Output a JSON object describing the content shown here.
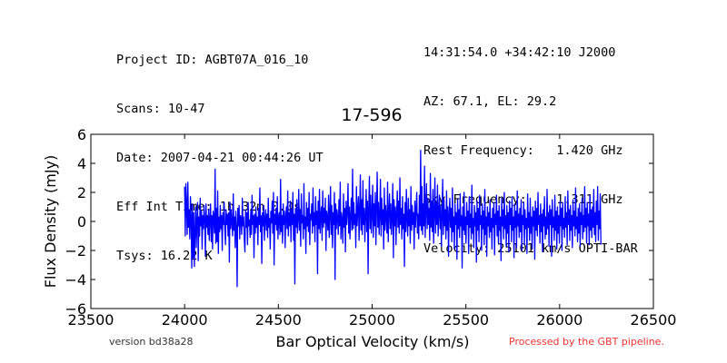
{
  "header_left": {
    "project": "Project ID: AGBT07A_016_10",
    "scans": "Scans: 10-47",
    "date": "Date: 2007-04-21 00:44:26 UT",
    "int_time": "Eff Int Time: 1h 32m 0.0s",
    "tsys": "Tsys: 16.22 K"
  },
  "header_right": {
    "coords": "14:31:54.0 +34:42:10 J2000",
    "azel": "AZ: 67.1, EL: 29.2",
    "rest_freq": "Rest Frequency:   1.420 GHz",
    "sky_freq": "Sky Frequency:    1.311 GHz",
    "velocity": "Velocity: 25101 km/s OPTI-BAR"
  },
  "footer": {
    "version": "version bd38a28",
    "pipeline": "Processed by the GBT pipeline."
  },
  "chart_data": {
    "type": "line",
    "title": "17-596",
    "xlabel": "Bar Optical Velocity (km/s)",
    "ylabel": "Flux Density (mJy)",
    "xlim": [
      23500,
      26500
    ],
    "ylim": [
      -6,
      6
    ],
    "xticks": [
      23500,
      24000,
      24500,
      25000,
      25500,
      26000,
      26500
    ],
    "yticks": [
      -6,
      -4,
      -2,
      0,
      2,
      4,
      6
    ],
    "grid": false,
    "line_color": "#0000ff",
    "series": [
      {
        "x_start": 24000,
        "x_end": 26220,
        "values": [
          2.4,
          -1.0,
          2.6,
          1.2,
          -0.9,
          2.7,
          -0.4,
          0.8,
          -1.2,
          1.7,
          0.3,
          -3.2,
          1.2,
          -2.5,
          0.6,
          -3.1,
          -0.6,
          1.0,
          -1.8,
          0.1,
          1.3,
          -2.7,
          0.3,
          -1.0,
          1.6,
          -0.3,
          0.7,
          -1.9,
          0.4,
          -0.5,
          1.1,
          0.2,
          -2.4,
          1.2,
          -0.4,
          0.4,
          -0.9,
          0.8,
          -1.3,
          0.2,
          1.2,
          -1.4,
          0.4,
          -1.9,
          0.7,
          0.2,
          -0.8,
          3.6,
          -1.5,
          0.9,
          -1.4,
          2.1,
          -2.2,
          0.3,
          -0.7,
          1.1,
          -0.5,
          0.4,
          -2.0,
          0.6,
          -0.2,
          1.3,
          -0.5,
          -1.6,
          0.8,
          -0.2,
          0.5,
          -1.0,
          0.6,
          -2.8,
          1.3,
          -0.5,
          0.8,
          -0.1,
          -1.0,
          1.9,
          -0.6,
          0.3,
          -1.8,
          0.7,
          -0.4,
          -4.5,
          0.9,
          -0.3,
          1.1,
          -1.2,
          0.4,
          0.2,
          -0.9,
          1.6,
          -0.3,
          0.3,
          -1.2,
          -2.1,
          0.8,
          -0.4,
          0.6,
          -1.6,
          1.3,
          -0.3,
          0.1,
          -1.1,
          0.7,
          -0.9,
          1.8,
          -0.2,
          0.4,
          -2.5,
          0.5,
          -0.8,
          1.0,
          -0.4,
          0.3,
          -1.6,
          0.9,
          -0.2,
          2.3,
          -0.7,
          0.4,
          -2.9,
          0.6,
          -0.3,
          1.1,
          -1.3,
          0.2,
          0.8,
          -0.6,
          0.5,
          -1.1,
          1.6,
          -0.4,
          0.2,
          -1.9,
          0.7,
          -0.1,
          1.4,
          -0.8,
          2.0,
          -3.0,
          0.5,
          -0.2,
          0.9,
          -0.6,
          1.7,
          -1.2,
          0.3,
          0.6,
          -0.9,
          2.9,
          -0.7,
          0.4,
          -1.5,
          1.2,
          -0.2,
          0.7,
          -1.8,
          0.3,
          1.0,
          -0.5,
          2.1,
          -1.0,
          0.6,
          -0.3,
          1.4,
          -1.4,
          0.8,
          -0.2,
          2.0,
          -1.3,
          0.5,
          -4.3,
          0.9,
          -0.4,
          1.5,
          -0.8,
          0.2,
          2.2,
          -0.6,
          0.8,
          -1.7,
          1.9,
          -0.1,
          0.4,
          -1.2,
          2.6,
          -0.5,
          0.3,
          -2.2,
          1.3,
          -0.3,
          0.9,
          -0.7,
          2.0,
          -1.6,
          0.5,
          0.1,
          1.2,
          -0.8,
          2.3,
          -0.3,
          0.6,
          -1.4,
          1.7,
          -0.2,
          0.7,
          -3.6,
          1.4,
          -0.5,
          2.2,
          -0.8,
          0.4,
          1.0,
          -1.3,
          2.1,
          -0.4,
          0.9,
          -0.1,
          1.6,
          -2.0,
          0.7,
          0.3,
          -0.6,
          1.8,
          -1.1,
          0.5,
          2.4,
          -0.9,
          1.1,
          -1.8,
          0.6,
          -0.2,
          2.0,
          -4.0,
          1.2,
          -0.5,
          0.8,
          0.2,
          -0.9,
          1.5,
          -0.3,
          2.7,
          -1.2,
          0.6,
          0.1,
          -1.5,
          1.9,
          -0.4,
          0.9,
          -2.1,
          1.4,
          -0.2,
          0.6,
          2.6,
          -0.8,
          1.0,
          -1.2,
          0.4,
          1.6,
          -0.6,
          3.6,
          -0.5,
          1.3,
          -0.2,
          0.5,
          -1.8,
          2.4,
          -0.3,
          0.8,
          1.7,
          -1.3,
          0.7,
          3.2,
          -0.6,
          1.5,
          -0.9,
          2.8,
          -0.2,
          0.9,
          -1.4,
          0.4,
          2.2,
          -0.7,
          1.4,
          -3.6,
          1.0,
          3.1,
          -0.5,
          1.8,
          -0.8,
          0.6,
          2.5,
          -1.1,
          1.2,
          -0.3,
          2.0,
          -1.6,
          0.9,
          3.4,
          -0.4,
          1.3,
          -0.9,
          0.5,
          2.9,
          -1.0,
          1.6,
          -0.2,
          0.8,
          -1.9,
          2.3,
          -0.6,
          1.1,
          0.3,
          -0.8,
          2.7,
          -1.4,
          0.7,
          1.9,
          -0.5,
          1.2,
          -0.9,
          0.4,
          2.6,
          -2.5,
          1.5,
          -0.3,
          1.0,
          -1.6,
          0.6,
          2.1,
          -0.4,
          1.4,
          -0.8,
          3.0,
          -0.2,
          0.9,
          -1.2,
          1.7,
          -0.5,
          0.5,
          -3.1,
          1.3,
          -0.7,
          2.2,
          0.1,
          -1.0,
          1.6,
          -0.3,
          0.8,
          -1.5,
          2.4,
          -0.6,
          1.1,
          -0.2,
          0.6,
          -1.9,
          1.4,
          -0.4,
          0.9,
          2.0,
          -0.8,
          0.5,
          -1.2,
          1.8,
          -0.3,
          4.9,
          -0.6,
          2.4,
          -0.9,
          1.2,
          -0.3,
          3.8,
          -1.1,
          0.8,
          2.6,
          -0.5,
          1.6,
          -0.2,
          0.9,
          -1.3,
          3.3,
          -0.4,
          1.4,
          -0.7,
          2.2,
          -1.5,
          0.6,
          3.0,
          -0.8,
          1.3,
          -0.2,
          2.5,
          -1.0,
          0.7,
          1.8,
          -0.5,
          1.1,
          -1.7,
          0.4,
          2.9,
          -0.9,
          1.5,
          -0.3,
          0.8,
          -1.2,
          2.1,
          -0.6,
          1.0,
          -2.4,
          0.5,
          1.6,
          -0.4,
          0.9,
          -1.4,
          2.3,
          -0.7,
          0.3,
          -1.9,
          1.2,
          -0.2,
          0.6,
          -2.6,
          1.5,
          -0.5,
          0.8,
          -1.1,
          1.9,
          -0.3,
          0.4,
          -3.2,
          1.0,
          -0.6,
          2.0,
          -0.9,
          0.3,
          -1.5,
          1.3,
          -0.2,
          0.7,
          -2.2,
          1.7,
          -0.4,
          0.5,
          -1.2,
          2.5,
          -0.8,
          0.2,
          -1.8,
          1.1,
          -0.3,
          0.6,
          -2.8,
          1.4,
          -0.6,
          0.9,
          -1.4,
          1.8,
          -0.2,
          0.4,
          -2.0,
          1.2,
          -0.5,
          0.7,
          -1.6,
          2.2,
          -0.9,
          0.3,
          -2.4,
          1.0,
          -0.3,
          0.6,
          -1.1,
          1.5,
          -0.7,
          0.2,
          -1.9,
          0.9,
          -0.4,
          1.3,
          -2.3,
          0.5,
          -0.2,
          1.8,
          -1.0,
          0.7,
          -1.5,
          1.1,
          -0.6,
          0.3,
          -2.7,
          1.6,
          -0.3,
          0.8,
          -1.2,
          2.0,
          -0.5,
          0.4,
          -1.7,
          1.1,
          -0.8,
          0.6,
          -2.1,
          1.4,
          -0.2,
          0.9,
          -1.4,
          1.7,
          -0.6,
          0.3,
          -2.5,
          1.2,
          -0.4,
          0.7,
          -1.8,
          2.1,
          -0.3,
          0.5,
          -1.1,
          0.9,
          -0.7,
          1.5,
          -2.0,
          0.4,
          -0.2,
          1.3,
          -1.6,
          0.8,
          -0.5,
          0.2,
          -2.2,
          1.9,
          -0.4,
          0.6,
          -1.3,
          1.6,
          -0.8,
          0.3,
          -1.9,
          1.0,
          -0.3,
          0.7,
          -2.6,
          1.4,
          -0.6,
          0.9,
          -1.0,
          2.0,
          -0.2,
          0.4,
          -1.5,
          1.2,
          -0.7,
          0.5,
          -2.1,
          0.8,
          -0.3,
          1.7,
          -1.2,
          0.3,
          -0.9,
          2.2,
          -0.5,
          0.6,
          -1.7,
          1.1,
          -0.2,
          0.8,
          -2.4,
          1.5,
          -0.4,
          0.3,
          -1.3,
          1.8,
          -0.6,
          0.7,
          -1.9,
          1.0,
          -0.8,
          0.4,
          -1.5,
          1.4,
          -0.3,
          0.9,
          -2.0,
          1.3,
          -0.5,
          0.2,
          -1.1,
          1.7,
          -0.4,
          0.6,
          -1.6,
          2.1,
          -0.2,
          0.8,
          -1.3,
          1.1,
          -0.6,
          0.4,
          -1.8,
          1.5,
          -0.3,
          0.7,
          -1.0,
          2.3,
          -0.5,
          0.3,
          -1.4,
          0.9,
          -0.8,
          1.2,
          -1.7,
          0.6,
          -0.2,
          1.6,
          -1.2,
          0.4,
          -0.7,
          2.4,
          -0.4,
          0.9,
          -1.5,
          1.3,
          -0.3,
          0.5,
          -1.6,
          1.8,
          -0.6,
          0.8,
          -1.1,
          1.0,
          -0.4,
          2.2,
          -0.9,
          0.6,
          -1.4,
          1.4,
          -0.2,
          2.4,
          -1.3,
          0.7,
          -0.5,
          1.9,
          -1.6
        ]
      }
    ]
  }
}
